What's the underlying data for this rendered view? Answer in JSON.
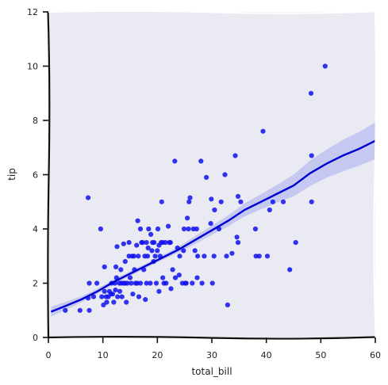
{
  "chart_data": {
    "type": "scatter",
    "title": "",
    "xlabel": "total_bill",
    "ylabel": "tip",
    "xlim": [
      0,
      60
    ],
    "ylim": [
      0,
      12
    ],
    "xticks": [
      0,
      10,
      20,
      30,
      40,
      50,
      60
    ],
    "yticks": [
      0,
      2,
      4,
      6,
      8,
      10,
      12
    ],
    "grid": false,
    "background_color": "#eaeaf2",
    "point_color": "#1010f0",
    "line_color": "#0000d0",
    "band_color": "#9aa0ee",
    "points": [
      [
        7.3,
        5.15
      ],
      [
        3.1,
        1.0
      ],
      [
        5.8,
        1.0
      ],
      [
        7.5,
        1.0
      ],
      [
        7.3,
        1.45
      ],
      [
        7.5,
        2.0
      ],
      [
        8.3,
        1.5
      ],
      [
        8.9,
        2.0
      ],
      [
        9.6,
        4.0
      ],
      [
        9.8,
        1.5
      ],
      [
        10.1,
        1.2
      ],
      [
        10.3,
        1.7
      ],
      [
        10.6,
        1.5
      ],
      [
        10.3,
        2.6
      ],
      [
        10.7,
        1.3
      ],
      [
        11.0,
        1.5
      ],
      [
        11.2,
        1.7
      ],
      [
        11.5,
        1.6
      ],
      [
        11.6,
        2.0
      ],
      [
        11.8,
        1.6
      ],
      [
        12.0,
        1.3
      ],
      [
        12.2,
        2.0
      ],
      [
        12.3,
        1.75
      ],
      [
        12.5,
        2.2
      ],
      [
        12.7,
        1.5
      ],
      [
        12.4,
        2.6
      ],
      [
        12.6,
        3.35
      ],
      [
        13.0,
        2.0
      ],
      [
        13.1,
        1.7
      ],
      [
        13.3,
        2.5
      ],
      [
        13.4,
        2.0
      ],
      [
        13.5,
        1.5
      ],
      [
        13.8,
        2.0
      ],
      [
        13.8,
        3.45
      ],
      [
        14.1,
        2.0
      ],
      [
        14.1,
        2.8
      ],
      [
        14.3,
        1.3
      ],
      [
        14.5,
        2.0
      ],
      [
        14.8,
        3.0
      ],
      [
        14.8,
        3.5
      ],
      [
        15.0,
        2.2
      ],
      [
        15.2,
        2.0
      ],
      [
        15.4,
        3.0
      ],
      [
        15.5,
        1.6
      ],
      [
        15.7,
        3.0
      ],
      [
        15.8,
        2.5
      ],
      [
        16.0,
        2.0
      ],
      [
        16.2,
        3.4
      ],
      [
        16.3,
        2.0
      ],
      [
        16.4,
        4.3
      ],
      [
        16.5,
        3.0
      ],
      [
        16.6,
        1.5
      ],
      [
        16.9,
        4.0
      ],
      [
        16.9,
        2.0
      ],
      [
        17.1,
        3.5
      ],
      [
        17.3,
        3.5
      ],
      [
        17.5,
        2.5
      ],
      [
        17.7,
        3.0
      ],
      [
        17.8,
        1.4
      ],
      [
        18.0,
        2.0
      ],
      [
        18.0,
        3.5
      ],
      [
        18.2,
        3.0
      ],
      [
        18.3,
        3.3
      ],
      [
        18.4,
        4.0
      ],
      [
        18.7,
        2.0
      ],
      [
        18.8,
        3.8
      ],
      [
        19.0,
        3.2
      ],
      [
        19.1,
        3.5
      ],
      [
        19.3,
        2.8
      ],
      [
        19.4,
        3.5
      ],
      [
        19.6,
        3.0
      ],
      [
        19.8,
        2.0
      ],
      [
        20.0,
        3.2
      ],
      [
        20.1,
        4.0
      ],
      [
        20.3,
        1.7
      ],
      [
        20.3,
        3.4
      ],
      [
        20.5,
        3.0
      ],
      [
        20.7,
        3.5
      ],
      [
        20.8,
        5.0
      ],
      [
        21.0,
        2.2
      ],
      [
        21.0,
        3.5
      ],
      [
        21.2,
        2.0
      ],
      [
        21.5,
        3.5
      ],
      [
        21.6,
        2.0
      ],
      [
        22.0,
        4.1
      ],
      [
        22.2,
        3.5
      ],
      [
        22.4,
        3.5
      ],
      [
        22.5,
        1.8
      ],
      [
        22.8,
        2.5
      ],
      [
        23.2,
        6.5
      ],
      [
        23.3,
        2.2
      ],
      [
        23.7,
        3.3
      ],
      [
        24.0,
        2.3
      ],
      [
        24.1,
        3.0
      ],
      [
        24.6,
        2.0
      ],
      [
        24.8,
        3.2
      ],
      [
        24.9,
        4.0
      ],
      [
        25.1,
        2.0
      ],
      [
        25.3,
        2.0
      ],
      [
        25.5,
        4.4
      ],
      [
        25.7,
        4.0
      ],
      [
        25.8,
        5.0
      ],
      [
        26.0,
        5.15
      ],
      [
        26.4,
        2.0
      ],
      [
        26.6,
        4.0
      ],
      [
        26.9,
        3.2
      ],
      [
        27.2,
        4.0
      ],
      [
        27.3,
        2.2
      ],
      [
        27.4,
        3.0
      ],
      [
        28.0,
        6.5
      ],
      [
        28.2,
        2.0
      ],
      [
        28.6,
        3.0
      ],
      [
        29.0,
        5.9
      ],
      [
        29.8,
        4.2
      ],
      [
        29.9,
        5.1
      ],
      [
        30.1,
        2.0
      ],
      [
        30.4,
        3.0
      ],
      [
        30.5,
        4.7
      ],
      [
        31.3,
        4.0
      ],
      [
        31.7,
        5.0
      ],
      [
        32.4,
        6.0
      ],
      [
        32.7,
        3.0
      ],
      [
        32.9,
        1.2
      ],
      [
        33.7,
        3.1
      ],
      [
        34.3,
        6.7
      ],
      [
        34.6,
        3.7
      ],
      [
        34.8,
        5.2
      ],
      [
        34.8,
        3.5
      ],
      [
        35.3,
        5.0
      ],
      [
        38.0,
        4.0
      ],
      [
        38.1,
        3.0
      ],
      [
        38.7,
        3.0
      ],
      [
        39.4,
        7.6
      ],
      [
        40.2,
        3.0
      ],
      [
        40.6,
        4.7
      ],
      [
        41.2,
        5.0
      ],
      [
        43.1,
        5.0
      ],
      [
        44.3,
        2.5
      ],
      [
        45.4,
        3.5
      ],
      [
        48.2,
        9.0
      ],
      [
        48.3,
        6.7
      ],
      [
        48.3,
        5.0
      ],
      [
        50.8,
        10.0
      ]
    ],
    "regression": {
      "x": [
        0.5,
        3,
        6,
        9,
        12,
        15,
        18,
        21,
        24,
        27,
        30,
        33,
        36,
        39,
        42,
        45,
        48,
        51,
        54,
        57,
        60
      ],
      "y": [
        0.95,
        1.15,
        1.4,
        1.7,
        2.05,
        2.35,
        2.65,
        2.95,
        3.25,
        3.6,
        3.95,
        4.3,
        4.7,
        5.0,
        5.3,
        5.6,
        6.05,
        6.4,
        6.7,
        6.95,
        7.25
      ],
      "ci_low": [
        0.77,
        1.0,
        1.29,
        1.6,
        1.96,
        2.26,
        2.56,
        2.86,
        3.14,
        3.45,
        3.78,
        4.1,
        4.46,
        4.72,
        4.97,
        5.2,
        5.58,
        5.88,
        6.12,
        6.33,
        6.57
      ],
      "ci_high": [
        1.13,
        1.3,
        1.51,
        1.8,
        2.14,
        2.44,
        2.74,
        3.04,
        3.36,
        3.75,
        4.12,
        4.5,
        4.94,
        5.28,
        5.63,
        6.0,
        6.52,
        6.92,
        7.28,
        7.57,
        7.93
      ]
    }
  }
}
